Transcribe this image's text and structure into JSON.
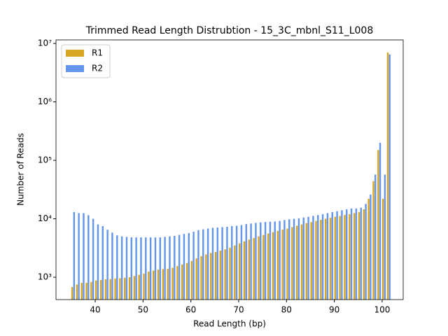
{
  "chart_data": {
    "type": "bar",
    "title": "Trimmed Read Length Distrubtion - 15_3C_mbnl_S11_L008",
    "x_label": "Read Length (bp)",
    "y_label": "Number of Reads",
    "x": [
      35,
      36,
      37,
      38,
      39,
      40,
      41,
      42,
      43,
      44,
      45,
      46,
      47,
      48,
      49,
      50,
      51,
      52,
      53,
      54,
      55,
      56,
      57,
      58,
      59,
      60,
      61,
      62,
      63,
      64,
      65,
      66,
      67,
      68,
      69,
      70,
      71,
      72,
      73,
      74,
      75,
      76,
      77,
      78,
      79,
      80,
      81,
      82,
      83,
      84,
      85,
      86,
      87,
      88,
      89,
      90,
      91,
      92,
      93,
      94,
      95,
      96,
      97,
      98,
      99,
      100,
      101
    ],
    "series": [
      {
        "name": "R1",
        "color": "#daa520",
        "values": [
          680,
          750,
          800,
          800,
          830,
          880,
          900,
          920,
          930,
          950,
          960,
          980,
          1000,
          1050,
          1100,
          1150,
          1250,
          1300,
          1350,
          1380,
          1400,
          1450,
          1550,
          1650,
          1750,
          1900,
          2100,
          2300,
          2450,
          2600,
          2700,
          2850,
          3000,
          3200,
          3500,
          3800,
          4100,
          4400,
          4700,
          5000,
          5300,
          5600,
          5900,
          6200,
          6500,
          6800,
          7200,
          7600,
          8000,
          8400,
          8800,
          9200,
          9600,
          10000,
          10400,
          10800,
          11200,
          11600,
          12000,
          12500,
          13000,
          14500,
          22000,
          44000,
          150000,
          22000,
          7000000
        ]
      },
      {
        "name": "R2",
        "color": "#6495ed",
        "values": [
          13000,
          12500,
          12500,
          11500,
          10000,
          8000,
          7500,
          6500,
          5800,
          5200,
          5000,
          4900,
          4800,
          4800,
          4800,
          4800,
          4800,
          4800,
          4800,
          4900,
          5000,
          5100,
          5300,
          5500,
          5700,
          6000,
          6400,
          6600,
          6800,
          7000,
          7100,
          7200,
          7300,
          7500,
          7600,
          7800,
          8100,
          8300,
          8500,
          8700,
          8800,
          8900,
          9000,
          9200,
          9500,
          9800,
          10000,
          10200,
          10500,
          10800,
          11200,
          11600,
          12000,
          12500,
          13000,
          13500,
          14000,
          14500,
          15000,
          15000,
          15500,
          18000,
          26000,
          57000,
          200000,
          57000,
          6500000
        ]
      }
    ],
    "xlim": [
      31.8,
      104.4
    ],
    "xticks": [
      40,
      50,
      60,
      70,
      80,
      90,
      100
    ],
    "ylim": [
      414,
      11500000
    ],
    "log_y": true,
    "yticks": [
      {
        "value": 1000,
        "label": "10³"
      },
      {
        "value": 10000,
        "label": "10⁴"
      },
      {
        "value": 100000,
        "label": "10⁵"
      },
      {
        "value": 1000000,
        "label": "10⁶"
      },
      {
        "value": 10000000,
        "label": "10⁷"
      }
    ],
    "legend": "upper left",
    "grid": false
  }
}
